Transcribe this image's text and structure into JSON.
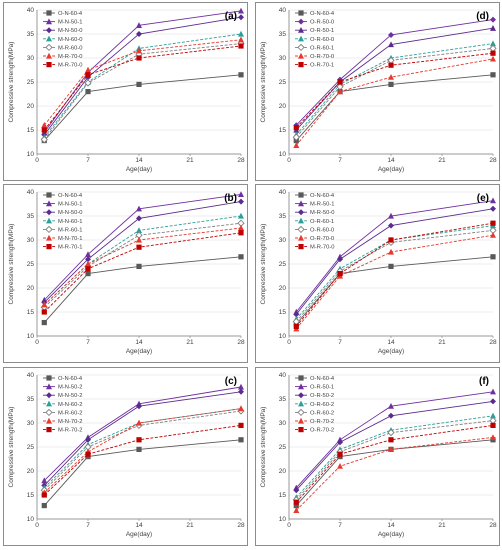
{
  "chart_data": [
    {
      "type": "line",
      "panel_label": "(a)",
      "x": [
        1,
        7,
        14,
        28
      ],
      "xticks": [
        0,
        7,
        14,
        21,
        28
      ],
      "xlim": [
        0,
        28
      ],
      "yticks": [
        10,
        15,
        20,
        25,
        30,
        35,
        40
      ],
      "ylim": [
        10,
        40
      ],
      "xlabel": "Age(day)",
      "ylabel": "Compressive strength(MPa)",
      "legend_position": "top-left",
      "grid": true,
      "series": [
        {
          "name": "O-N-60-4",
          "values": [
            12.8,
            23.0,
            24.5,
            26.5
          ],
          "color": "#595959",
          "marker": "square",
          "dash": "solid"
        },
        {
          "name": "M-N-50-1",
          "values": [
            14.5,
            27.0,
            36.8,
            39.8
          ],
          "color": "#7030a0",
          "marker": "triangle",
          "dash": "solid"
        },
        {
          "name": "M-N-50-0",
          "values": [
            14.0,
            26.0,
            35.0,
            38.5
          ],
          "color": "#5b2c8f",
          "marker": "diamond",
          "dash": "solid"
        },
        {
          "name": "M-N-60-0",
          "values": [
            13.5,
            25.0,
            32.0,
            35.0
          ],
          "color": "#2aa198",
          "marker": "triangle",
          "dash": "dashed"
        },
        {
          "name": "M-R-60-0",
          "values": [
            13.0,
            24.8,
            30.8,
            33.0
          ],
          "color": "#808080",
          "marker": "diamond-open",
          "dash": "dashed"
        },
        {
          "name": "M-R-70-0",
          "values": [
            16.0,
            27.5,
            31.5,
            33.8
          ],
          "color": "#e8382e",
          "marker": "triangle",
          "dash": "dashed"
        },
        {
          "name": "M-R-70-0",
          "values": [
            15.0,
            26.5,
            30.0,
            32.5
          ],
          "color": "#c00000",
          "marker": "square",
          "dash": "dashed"
        }
      ]
    },
    {
      "type": "line",
      "panel_label": "(d)",
      "x": [
        1,
        7,
        14,
        28
      ],
      "xticks": [
        0,
        7,
        14,
        21,
        28
      ],
      "xlim": [
        0,
        28
      ],
      "yticks": [
        10,
        15,
        20,
        25,
        30,
        35,
        40
      ],
      "ylim": [
        10,
        40
      ],
      "xlabel": "Age(day)",
      "ylabel": "Compressive strength(MPa)",
      "legend_position": "top-left",
      "grid": true,
      "series": [
        {
          "name": "O-N-60-4",
          "values": [
            12.8,
            23.0,
            24.5,
            26.5
          ],
          "color": "#595959",
          "marker": "square",
          "dash": "solid"
        },
        {
          "name": "O-R-50-0",
          "values": [
            16.0,
            25.5,
            34.8,
            38.0
          ],
          "color": "#7030a0",
          "marker": "diamond",
          "dash": "solid"
        },
        {
          "name": "O-R-50-1",
          "values": [
            15.0,
            25.0,
            32.8,
            36.2
          ],
          "color": "#5b2c8f",
          "marker": "triangle",
          "dash": "solid"
        },
        {
          "name": "O-R-60-0",
          "values": [
            14.0,
            24.5,
            30.0,
            33.0
          ],
          "color": "#2aa198",
          "marker": "triangle",
          "dash": "dashed"
        },
        {
          "name": "O-R-60-1",
          "values": [
            13.5,
            24.0,
            29.5,
            32.0
          ],
          "color": "#808080",
          "marker": "diamond-open",
          "dash": "dashed"
        },
        {
          "name": "O-R-70-0",
          "values": [
            11.8,
            23.0,
            26.0,
            29.8
          ],
          "color": "#e8382e",
          "marker": "triangle",
          "dash": "dashed"
        },
        {
          "name": "O-R-70-1",
          "values": [
            15.5,
            25.0,
            28.5,
            31.0
          ],
          "color": "#c00000",
          "marker": "square",
          "dash": "dashed"
        }
      ]
    },
    {
      "type": "line",
      "panel_label": "(b)",
      "x": [
        1,
        7,
        14,
        28
      ],
      "xticks": [
        0,
        7,
        14,
        21,
        28
      ],
      "xlim": [
        0,
        28
      ],
      "yticks": [
        10,
        15,
        20,
        25,
        30,
        35,
        40
      ],
      "ylim": [
        10,
        40
      ],
      "xlabel": "Age(day)",
      "ylabel": "Compressive strength(MPa)",
      "legend_position": "top-left",
      "grid": true,
      "series": [
        {
          "name": "O-N-60-4",
          "values": [
            12.8,
            23.0,
            24.5,
            26.5
          ],
          "color": "#595959",
          "marker": "square",
          "dash": "solid"
        },
        {
          "name": "M-N-50-1",
          "values": [
            17.5,
            27.0,
            36.5,
            39.5
          ],
          "color": "#7030a0",
          "marker": "triangle",
          "dash": "solid"
        },
        {
          "name": "M-N-50-0",
          "values": [
            17.0,
            26.0,
            34.5,
            38.0
          ],
          "color": "#5b2c8f",
          "marker": "diamond",
          "dash": "solid"
        },
        {
          "name": "M-N-60-1",
          "values": [
            16.5,
            25.0,
            32.0,
            35.0
          ],
          "color": "#2aa198",
          "marker": "triangle",
          "dash": "dashed"
        },
        {
          "name": "M-R-60-1",
          "values": [
            16.0,
            24.5,
            31.0,
            33.5
          ],
          "color": "#808080",
          "marker": "diamond-open",
          "dash": "dashed"
        },
        {
          "name": "M-N-70-1",
          "values": [
            16.5,
            25.0,
            30.0,
            32.5
          ],
          "color": "#e8382e",
          "marker": "triangle",
          "dash": "dashed"
        },
        {
          "name": "M-R-70-1",
          "values": [
            15.0,
            24.0,
            28.5,
            31.5
          ],
          "color": "#c00000",
          "marker": "square",
          "dash": "dashed"
        }
      ]
    },
    {
      "type": "line",
      "panel_label": "(e)",
      "x": [
        1,
        7,
        14,
        28
      ],
      "xticks": [
        0,
        7,
        14,
        21,
        28
      ],
      "xlim": [
        0,
        28
      ],
      "yticks": [
        10,
        15,
        20,
        25,
        30,
        35,
        40
      ],
      "ylim": [
        10,
        40
      ],
      "xlabel": "Age(day)",
      "ylabel": "Compressive strength(MPa)",
      "legend_position": "top-left",
      "grid": true,
      "series": [
        {
          "name": "O-N-60-4",
          "values": [
            12.5,
            23.0,
            24.5,
            26.5
          ],
          "color": "#595959",
          "marker": "square",
          "dash": "solid"
        },
        {
          "name": "M-R-50-1",
          "values": [
            15.0,
            26.5,
            35.0,
            38.2
          ],
          "color": "#7030a0",
          "marker": "triangle",
          "dash": "solid"
        },
        {
          "name": "M-R-50-0",
          "values": [
            14.5,
            26.0,
            33.0,
            36.5
          ],
          "color": "#5b2c8f",
          "marker": "diamond",
          "dash": "solid"
        },
        {
          "name": "O-R-60-1",
          "values": [
            13.5,
            24.0,
            30.0,
            33.0
          ],
          "color": "#2aa198",
          "marker": "triangle",
          "dash": "dashed"
        },
        {
          "name": "O-R-60-0",
          "values": [
            13.0,
            23.5,
            29.5,
            32.0
          ],
          "color": "#808080",
          "marker": "diamond-open",
          "dash": "dashed"
        },
        {
          "name": "O-R-70-0",
          "values": [
            11.5,
            22.5,
            27.5,
            31.0
          ],
          "color": "#e8382e",
          "marker": "triangle",
          "dash": "dashed"
        },
        {
          "name": "M-R-70-0",
          "values": [
            12.0,
            23.0,
            30.0,
            33.5
          ],
          "color": "#c00000",
          "marker": "square",
          "dash": "dashed"
        }
      ]
    },
    {
      "type": "line",
      "panel_label": "(c)",
      "x": [
        1,
        7,
        14,
        28
      ],
      "xticks": [
        0,
        7,
        14,
        21,
        28
      ],
      "xlim": [
        0,
        28
      ],
      "yticks": [
        10,
        15,
        20,
        25,
        30,
        35,
        40
      ],
      "ylim": [
        10,
        40
      ],
      "xlabel": "Age(day)",
      "ylabel": "Compressive strength(MPa)",
      "legend_position": "top-left",
      "grid": true,
      "series": [
        {
          "name": "O-N-60-4",
          "values": [
            12.8,
            23.0,
            24.5,
            26.5
          ],
          "color": "#595959",
          "marker": "square",
          "dash": "solid"
        },
        {
          "name": "M-N-50-2",
          "values": [
            18.0,
            27.0,
            34.0,
            37.5
          ],
          "color": "#7030a0",
          "marker": "triangle",
          "dash": "solid"
        },
        {
          "name": "M-N-50-2",
          "values": [
            17.0,
            26.5,
            33.5,
            36.5
          ],
          "color": "#5b2c8f",
          "marker": "diamond",
          "dash": "solid"
        },
        {
          "name": "M-N-60-2",
          "values": [
            16.5,
            25.5,
            30.0,
            33.0
          ],
          "color": "#2aa198",
          "marker": "triangle",
          "dash": "dashed"
        },
        {
          "name": "M-R-60-2",
          "values": [
            16.0,
            25.0,
            29.5,
            32.5
          ],
          "color": "#808080",
          "marker": "diamond-open",
          "dash": "dashed"
        },
        {
          "name": "M-N-70-2",
          "values": [
            15.5,
            24.0,
            30.0,
            33.0
          ],
          "color": "#e8382e",
          "marker": "triangle",
          "dash": "dashed"
        },
        {
          "name": "M-R-70-2",
          "values": [
            15.0,
            23.5,
            26.5,
            29.5
          ],
          "color": "#c00000",
          "marker": "square",
          "dash": "dashed"
        }
      ]
    },
    {
      "type": "line",
      "panel_label": "(f)",
      "x": [
        1,
        7,
        14,
        28
      ],
      "xticks": [
        0,
        7,
        14,
        21,
        28
      ],
      "xlim": [
        0,
        28
      ],
      "yticks": [
        10,
        15,
        20,
        25,
        30,
        35,
        40
      ],
      "ylim": [
        10,
        40
      ],
      "xlabel": "Age(day)",
      "ylabel": "Compressive strength(MPa)",
      "legend_position": "top-left",
      "grid": true,
      "series": [
        {
          "name": "O-N-60-4",
          "values": [
            12.8,
            23.0,
            24.5,
            26.5
          ],
          "color": "#595959",
          "marker": "square",
          "dash": "solid"
        },
        {
          "name": "O-R-50-1",
          "values": [
            16.5,
            26.5,
            33.5,
            36.5
          ],
          "color": "#7030a0",
          "marker": "triangle",
          "dash": "solid"
        },
        {
          "name": "O-R-50-2",
          "values": [
            16.0,
            26.0,
            31.5,
            34.5
          ],
          "color": "#5b2c8f",
          "marker": "diamond",
          "dash": "solid"
        },
        {
          "name": "O-R-60-2",
          "values": [
            14.5,
            24.5,
            28.5,
            31.5
          ],
          "color": "#2aa198",
          "marker": "triangle",
          "dash": "dashed"
        },
        {
          "name": "O-R-60-2",
          "values": [
            14.0,
            24.0,
            28.0,
            30.5
          ],
          "color": "#808080",
          "marker": "diamond-open",
          "dash": "dashed"
        },
        {
          "name": "O-R-70-2",
          "values": [
            11.8,
            21.0,
            24.5,
            27.0
          ],
          "color": "#e8382e",
          "marker": "triangle",
          "dash": "dashed"
        },
        {
          "name": "O-R-70-2",
          "values": [
            13.5,
            23.5,
            26.5,
            29.5
          ],
          "color": "#c00000",
          "marker": "square",
          "dash": "dashed"
        }
      ]
    }
  ]
}
